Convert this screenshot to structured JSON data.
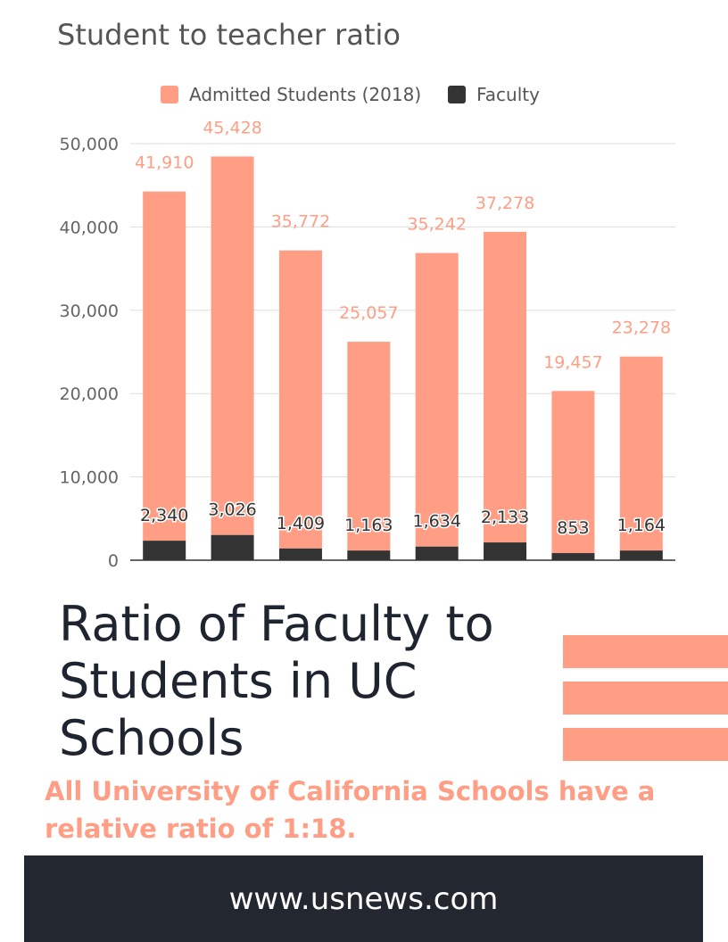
{
  "colors": {
    "admitted": "#ff9e85",
    "faculty": "#333333",
    "accent": "#ff9e85",
    "dark": "#232730",
    "gridline": "#dddddd",
    "axis_text": "#666666"
  },
  "chart_data": {
    "type": "bar",
    "stacked": false,
    "title": "Student to teacher ratio",
    "categories": [
      "",
      "",
      "",
      "",
      "",
      "",
      "",
      ""
    ],
    "series": [
      {
        "name": "Admitted Students (2018)",
        "values": [
          41910,
          45428,
          35772,
          25057,
          35242,
          37278,
          19457,
          23278
        ]
      },
      {
        "name": "Faculty",
        "values": [
          2340,
          3026,
          1409,
          1163,
          1634,
          2133,
          853,
          1164
        ]
      }
    ],
    "bar_totals": [
      44250,
      48454,
      37181,
      26220,
      36876,
      39411,
      20310,
      24442
    ],
    "admitted_labels": [
      "41,910",
      "45,428",
      "35,772",
      "25,057",
      "35,242",
      "37,278",
      "19,457",
      "23,278"
    ],
    "faculty_labels": [
      "2,340",
      "3,026",
      "1,409",
      "1,163",
      "1,634",
      "2,133",
      "853",
      "1,164"
    ],
    "ylim": [
      0,
      50000
    ],
    "yticks": [
      0,
      10000,
      20000,
      30000,
      40000,
      50000
    ],
    "ytick_labels": [
      "0",
      "10,000",
      "20,000",
      "30,000",
      "40,000",
      "50,000"
    ],
    "grid": true,
    "legend_position": "top"
  },
  "legend": {
    "admitted_label": "Admitted Students (2018)",
    "faculty_label": "Faculty"
  },
  "headline": "Ratio of Faculty to Students in UC Schools",
  "subtext": "All University of California Schools have a relative ratio of 1:18.",
  "footer": {
    "url": "www.usnews.com"
  }
}
